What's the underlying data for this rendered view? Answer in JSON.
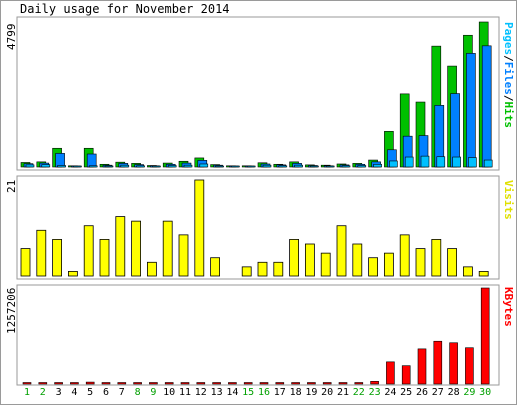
{
  "title": "Daily usage for November 2014",
  "colors": {
    "hits": "#00c000",
    "files": "#0080ff",
    "pages": "#00c0ff",
    "visits": "#ffff00",
    "kbytes": "#ff0000",
    "weekday": "#000000",
    "weekend": "#00a000",
    "outline": "#000000",
    "panelborder": "#9a9a9a"
  },
  "labels": {
    "pages": "Pages",
    "files": "Files",
    "hits": "Hits",
    "visits": "Visits",
    "kbytes": "KBytes",
    "sep1": "/",
    "sep2": "/"
  },
  "chart_data": [
    {
      "type": "bar",
      "ymax_label": "4799",
      "ylim": [
        0,
        4799
      ],
      "categories": [
        "1",
        "2",
        "3",
        "4",
        "5",
        "6",
        "7",
        "8",
        "9",
        "10",
        "11",
        "12",
        "13",
        "14",
        "15",
        "16",
        "17",
        "18",
        "19",
        "20",
        "21",
        "22",
        "23",
        "24",
        "25",
        "26",
        "27",
        "28",
        "29",
        "30"
      ],
      "series": [
        {
          "name": "Hits",
          "values": [
            150,
            170,
            620,
            40,
            620,
            90,
            160,
            120,
            50,
            130,
            190,
            300,
            80,
            40,
            40,
            140,
            90,
            170,
            70,
            60,
            100,
            120,
            230,
            1180,
            2420,
            2150,
            4000,
            3340,
            4360,
            4799
          ]
        },
        {
          "name": "Files",
          "values": [
            110,
            130,
            450,
            30,
            430,
            60,
            120,
            80,
            40,
            90,
            130,
            220,
            60,
            30,
            30,
            100,
            70,
            120,
            50,
            40,
            70,
            90,
            170,
            570,
            1020,
            1040,
            2040,
            2430,
            3760,
            4010
          ]
        },
        {
          "name": "Pages",
          "values": [
            70,
            80,
            50,
            20,
            40,
            30,
            60,
            40,
            20,
            50,
            60,
            100,
            30,
            20,
            20,
            60,
            40,
            60,
            30,
            20,
            40,
            50,
            90,
            200,
            330,
            360,
            340,
            330,
            310,
            230
          ]
        }
      ]
    },
    {
      "type": "bar",
      "ymax_label": "21",
      "ylim": [
        0,
        21
      ],
      "categories": [
        "1",
        "2",
        "3",
        "4",
        "5",
        "6",
        "7",
        "8",
        "9",
        "10",
        "11",
        "12",
        "13",
        "14",
        "15",
        "16",
        "17",
        "18",
        "19",
        "20",
        "21",
        "22",
        "23",
        "24",
        "25",
        "26",
        "27",
        "28",
        "29",
        "30"
      ],
      "series": [
        {
          "name": "Visits",
          "values": [
            6,
            10,
            8,
            1,
            11,
            8,
            13,
            12,
            3,
            12,
            9,
            21,
            4,
            0,
            2,
            3,
            3,
            8,
            7,
            5,
            11,
            7,
            4,
            5,
            9,
            6,
            8,
            6,
            2,
            1
          ]
        }
      ]
    },
    {
      "type": "bar",
      "ymax_label": "1257206",
      "ylim": [
        0,
        1257206
      ],
      "categories": [
        "1",
        "2",
        "3",
        "4",
        "5",
        "6",
        "7",
        "8",
        "9",
        "10",
        "11",
        "12",
        "13",
        "14",
        "15",
        "16",
        "17",
        "18",
        "19",
        "20",
        "21",
        "22",
        "23",
        "24",
        "25",
        "26",
        "27",
        "28",
        "29",
        "30"
      ],
      "series": [
        {
          "name": "KBytes",
          "values": [
            12000,
            12000,
            12000,
            6000,
            25000,
            10000,
            12000,
            10000,
            8000,
            9000,
            10000,
            12000,
            8000,
            6000,
            6000,
            10000,
            8000,
            10000,
            8000,
            8000,
            9000,
            9000,
            35000,
            290000,
            240000,
            460000,
            560000,
            540000,
            475000,
            1257206
          ]
        }
      ]
    }
  ],
  "weekend_days": [
    "1",
    "2",
    "8",
    "9",
    "15",
    "16",
    "22",
    "23",
    "29",
    "30"
  ]
}
